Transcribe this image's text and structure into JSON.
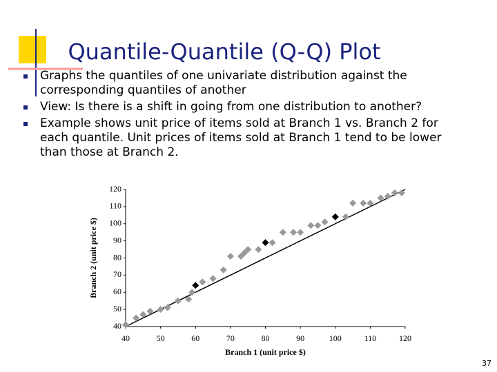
{
  "title": "Quantile-Quantile (Q-Q) Plot",
  "bullets": [
    "Graphs the quantiles of one univariate distribution against the corresponding quantiles of another",
    "View: Is there is a shift in going from one distribution to another?",
    "Example shows unit price of items sold at Branch 1 vs. Branch 2 for each quantile.  Unit prices of items sold at Branch 1 tend to be lower than those at Branch 2."
  ],
  "page_number": "37",
  "chart_data": {
    "type": "scatter",
    "x_label": "Branch 1 (unit price $)",
    "y_label": "Branch 2 (unit price $)",
    "x": [
      40,
      43,
      45,
      47,
      50,
      52,
      55,
      58,
      59,
      60,
      62,
      65,
      68,
      70,
      73,
      74,
      75,
      78,
      80,
      82,
      85,
      88,
      90,
      93,
      95,
      97,
      100,
      103,
      105,
      108,
      110,
      113,
      115,
      117,
      119
    ],
    "values": [
      41,
      45,
      47,
      49,
      50,
      51,
      55,
      56,
      60,
      64,
      66,
      68,
      73,
      81,
      81,
      83,
      85,
      85,
      89,
      89,
      95,
      95,
      95,
      99,
      99,
      101,
      104,
      104,
      112,
      112,
      112,
      115,
      116,
      118,
      118
    ],
    "point_colors": [
      "#999999",
      "#999999",
      "#999999",
      "#999999",
      "#999999",
      "#999999",
      "#999999",
      "#999999",
      "#999999",
      "#000000",
      "#999999",
      "#999999",
      "#999999",
      "#999999",
      "#999999",
      "#999999",
      "#999999",
      "#999999",
      "#000000",
      "#999999",
      "#999999",
      "#999999",
      "#999999",
      "#999999",
      "#999999",
      "#999999",
      "#000000",
      "#999999",
      "#999999",
      "#999999",
      "#999999",
      "#999999",
      "#999999",
      "#999999",
      "#999999"
    ],
    "xlim": [
      40,
      120
    ],
    "ylim": [
      40,
      120
    ],
    "xticks": [
      40,
      50,
      60,
      70,
      80,
      90,
      100,
      110,
      120
    ],
    "yticks": [
      40,
      50,
      60,
      70,
      80,
      90,
      100,
      110,
      120
    ],
    "diagonal": true,
    "grid": false
  }
}
